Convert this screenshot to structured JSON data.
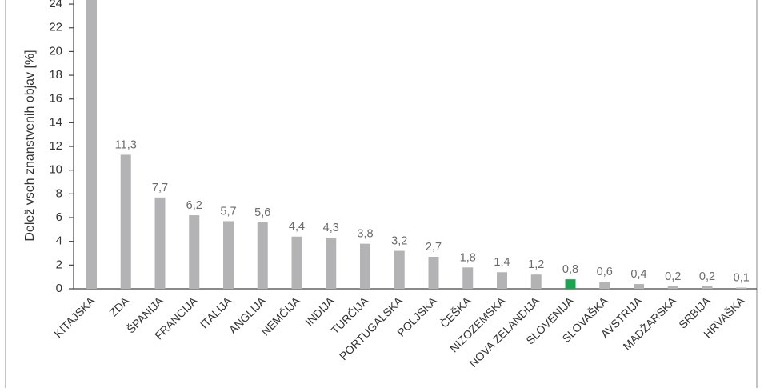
{
  "chart_data": {
    "type": "bar",
    "ylabel": "Delež vseh znanstvenih objav [%]",
    "xlabel": "",
    "ylim": [
      0,
      24
    ],
    "yticks": [
      0,
      2,
      4,
      6,
      8,
      10,
      12,
      14,
      16,
      18,
      20,
      22,
      24
    ],
    "grid": false,
    "categories": [
      "KITAJSKA",
      "ZDA",
      "ŠPANIJA",
      "FRANCIJA",
      "ITALIJA",
      "ANGLIJA",
      "NEMČIJA",
      "INDIJA",
      "TURČIJA",
      "PORTUGALSKA",
      "POLJSKA",
      "ČEŠKA",
      "NIZOZEMSKA",
      "NOVA ZELANDIJA",
      "SLOVENIJA",
      "SLOVAŠKA",
      "AVSTRIJA",
      "MADŽARSKA",
      "SRBIJA",
      "HRVAŠKA"
    ],
    "values": [
      24.5,
      11.3,
      7.7,
      6.2,
      5.7,
      5.6,
      4.4,
      4.3,
      3.8,
      3.2,
      2.7,
      1.8,
      1.4,
      1.2,
      0.8,
      0.6,
      0.4,
      0.2,
      0.2,
      0.1
    ],
    "value_labels": [
      "",
      "11,3",
      "7,7",
      "6,2",
      "5,7",
      "5,6",
      "4,4",
      "4,3",
      "3,8",
      "3,2",
      "2,7",
      "1,8",
      "1,4",
      "1,2",
      "0,8",
      "0,6",
      "0,4",
      "0,2",
      "0,2",
      "0,1"
    ],
    "highlight_index": 14,
    "colors": {
      "bar": "#b3b3b5",
      "highlight": "#1aa64f",
      "axis": "#333333",
      "value_text": "#6b6b6b"
    }
  }
}
